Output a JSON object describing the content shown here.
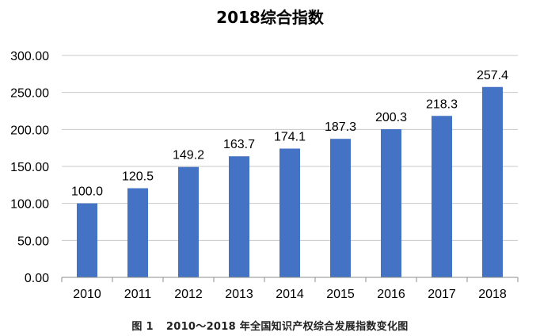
{
  "chart_data": {
    "type": "bar",
    "title": "2018综合指数",
    "xlabel": "",
    "ylabel": "",
    "categories": [
      "2010",
      "2011",
      "2012",
      "2013",
      "2014",
      "2015",
      "2016",
      "2017",
      "2018"
    ],
    "values": [
      100.0,
      120.5,
      149.2,
      163.7,
      174.1,
      187.3,
      200.3,
      218.3,
      257.4
    ],
    "value_labels": [
      "100.0",
      "120.5",
      "149.2",
      "163.7",
      "174.1",
      "187.3",
      "200.3",
      "218.3",
      "257.4"
    ],
    "ylim": [
      0,
      300
    ],
    "yticks": [
      "0.00",
      "50.00",
      "100.00",
      "150.00",
      "200.00",
      "250.00",
      "300.00"
    ],
    "grid": true,
    "legend": "none",
    "bar_color": "#4472C4"
  },
  "caption": {
    "figure_number": "图 1",
    "text": "2010～2018 年全国知识产权综合发展指数变化图"
  }
}
